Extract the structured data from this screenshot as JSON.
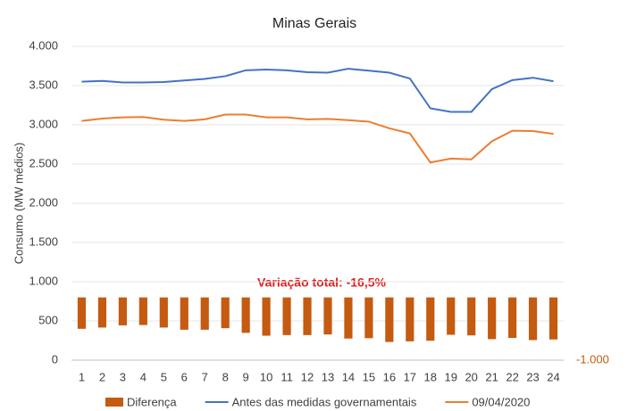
{
  "chart_data": {
    "type": "bar-line",
    "title": "Minas Gerais",
    "y_label": "Consumo (MW médios)",
    "annotation": "Variação total: -16,5%",
    "categories": [
      "1",
      "2",
      "3",
      "4",
      "5",
      "6",
      "7",
      "8",
      "9",
      "10",
      "11",
      "12",
      "13",
      "14",
      "15",
      "16",
      "17",
      "18",
      "19",
      "20",
      "21",
      "22",
      "23",
      "24"
    ],
    "series": [
      {
        "name": "Diferença",
        "color": "#c55a11",
        "type": "bar",
        "axis": "y2",
        "values": [
          -500,
          -480,
          -445,
          -440,
          -480,
          -515,
          -515,
          -490,
          -565,
          -610,
          -600,
          -600,
          -590,
          -655,
          -650,
          -710,
          -700,
          -690,
          -595,
          -605,
          -665,
          -645,
          -680,
          -670
        ]
      },
      {
        "name": "Antes das medidas governamentais",
        "color": "#4472c4",
        "type": "line",
        "values": [
          3550,
          3560,
          3540,
          3540,
          3545,
          3565,
          3585,
          3620,
          3695,
          3705,
          3695,
          3670,
          3665,
          3715,
          3690,
          3665,
          3590,
          3210,
          3165,
          3165,
          3455,
          3570,
          3600,
          3555
        ]
      },
      {
        "name": "09/04/2020",
        "color": "#ed7d31",
        "type": "line",
        "values": [
          3050,
          3080,
          3095,
          3100,
          3065,
          3050,
          3070,
          3130,
          3130,
          3095,
          3095,
          3070,
          3075,
          3060,
          3040,
          2955,
          2890,
          2520,
          2570,
          2560,
          2790,
          2925,
          2920,
          2885
        ]
      }
    ],
    "ylim": [
      0,
      4000
    ],
    "yticks": [
      0,
      500,
      {
        "value": 1000,
        "label": "1.000"
      },
      {
        "value": 1500,
        "label": "1.500"
      },
      {
        "value": 2000,
        "label": "2.000"
      },
      {
        "value": 2500,
        "label": "2.500"
      },
      {
        "value": 3000,
        "label": "3.000"
      },
      {
        "value": 3500,
        "label": "3.500"
      },
      {
        "value": 4000,
        "label": "4.000"
      }
    ],
    "y2lim": [
      -1000,
      4000
    ],
    "y2ticks": [
      {
        "value": -1000,
        "label": "-1.000"
      }
    ],
    "grid": true
  }
}
